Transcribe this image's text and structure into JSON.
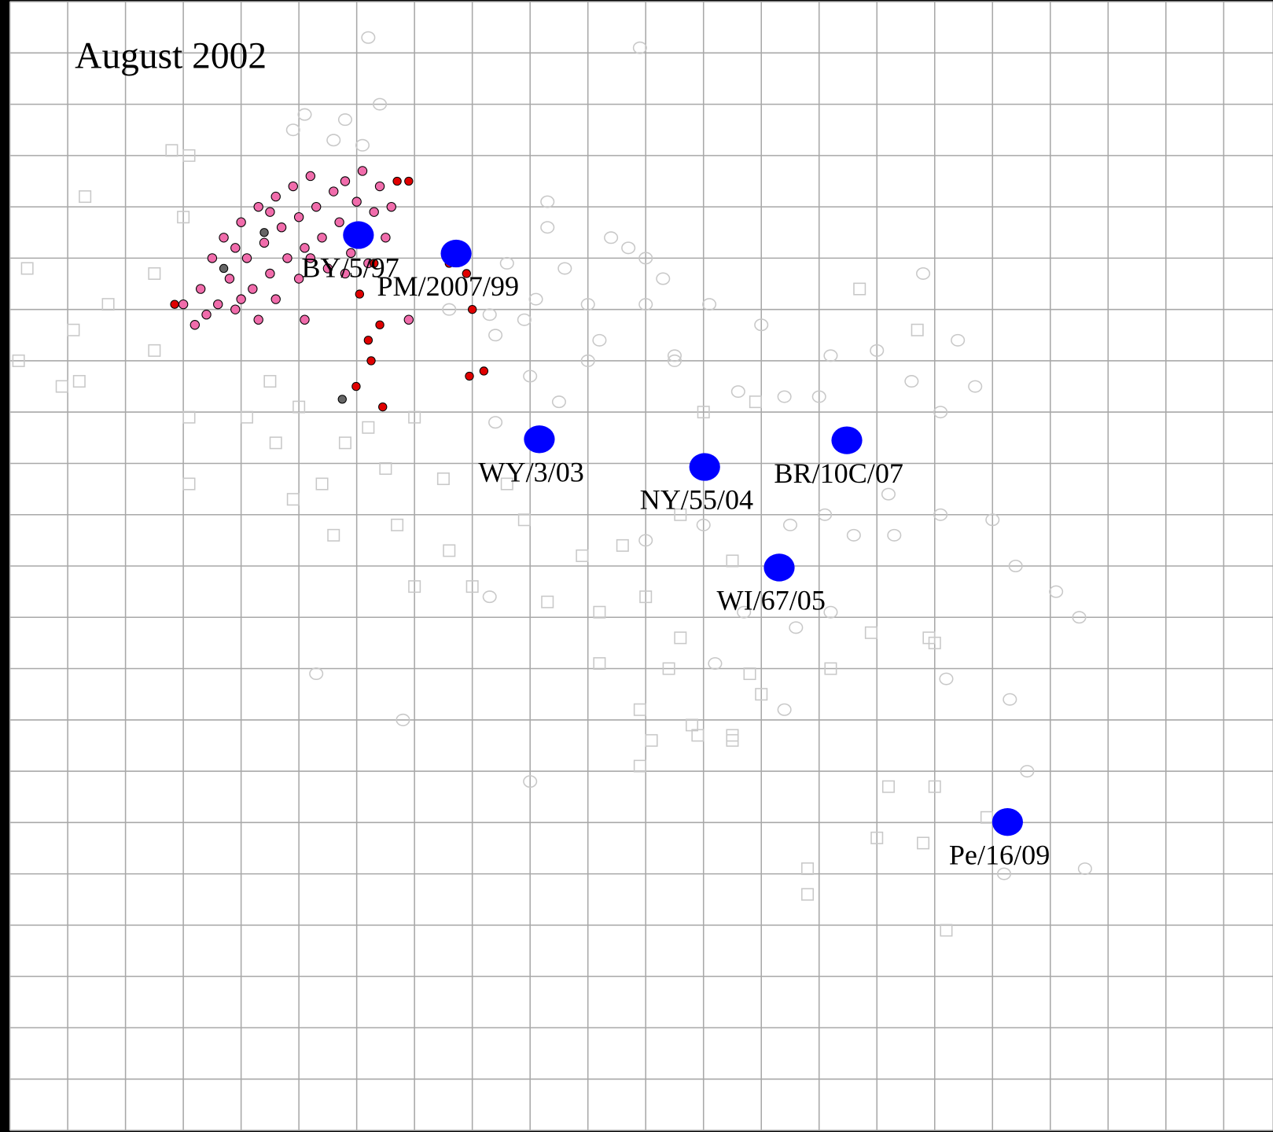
{
  "chart_data": {
    "type": "scatter",
    "title": "August 2002",
    "xlim": [
      0,
      21.85
    ],
    "ylim": [
      22,
      0
    ],
    "xticks": [
      0,
      1,
      2,
      3,
      4,
      5,
      6,
      7,
      8,
      9,
      10,
      11,
      12,
      13,
      14,
      15,
      16,
      17,
      18,
      19,
      20,
      21
    ],
    "yticks": [
      0,
      1,
      2,
      3,
      4,
      5,
      6,
      7,
      8,
      9,
      10,
      11,
      12,
      13,
      14,
      15,
      16,
      17,
      18,
      19,
      20,
      21,
      22
    ],
    "grid": true,
    "series": [
      {
        "marker": "square-open",
        "color": "#c8c8c8",
        "size": "medium",
        "x": [
          2.8,
          3.1,
          1.3,
          3.0,
          0.3,
          2.5,
          1.7,
          1.1,
          2.5,
          0.15,
          1.2,
          0.9,
          4.5,
          3.1,
          4.1,
          5.0,
          5.8,
          6.2,
          7.0,
          4.6,
          5.4,
          6.5,
          7.5,
          8.6,
          3.1,
          4.9,
          5.6,
          6.7,
          7.6,
          8.9,
          9.9,
          10.6,
          11.6,
          12.5,
          7.0,
          8.0,
          9.3,
          10.2,
          11.0,
          11.6,
          10.2,
          11.4,
          12.8,
          10.9,
          11.8,
          12.5,
          13.0,
          14.2,
          14.9,
          15.9,
          14.7,
          15.7,
          12.9,
          12.0,
          16.0,
          10.9,
          11.9,
          12.5,
          11.1,
          16.0,
          16.9,
          15.0,
          15.8,
          16.2,
          13.8,
          13.8,
          15.2
        ],
        "values": [
          2.9,
          3.0,
          3.8,
          4.2,
          5.2,
          5.3,
          5.9,
          6.4,
          6.8,
          7.0,
          7.4,
          7.5,
          7.4,
          8.1,
          8.1,
          7.9,
          8.6,
          8.3,
          8.1,
          8.6,
          9.4,
          9.1,
          9.3,
          9.4,
          9.4,
          9.7,
          10.4,
          10.2,
          10.7,
          10.1,
          10.8,
          10.6,
          10.0,
          10.9,
          11.4,
          11.4,
          11.7,
          11.9,
          11.6,
          12.4,
          12.9,
          13.0,
          13.1,
          13.8,
          14.1,
          14.3,
          13.5,
          13.0,
          12.3,
          12.4,
          5.6,
          6.4,
          7.8,
          8.0,
          12.5,
          14.9,
          14.3,
          14.4,
          14.4,
          15.3,
          15.9,
          16.3,
          16.4,
          18.1,
          17.4,
          16.9,
          15.3
        ]
      },
      {
        "marker": "circle-open",
        "color": "#c8c8c8",
        "size": "medium",
        "x": [
          6.2,
          10.9,
          6.4,
          5.1,
          5.8,
          4.9,
          5.6,
          6.1,
          9.3,
          9.3,
          10.4,
          10.7,
          11.0,
          8.6,
          9.6,
          11.3,
          7.6,
          8.3,
          9.1,
          10.0,
          11.0,
          12.1,
          8.9,
          10.2,
          11.5,
          13.0,
          14.2,
          15.0,
          15.8,
          16.4,
          16.7,
          15.6,
          14.0,
          13.4,
          12.6,
          11.5,
          10.0,
          9.0,
          8.4,
          9.5,
          8.4,
          16.1,
          15.2,
          14.1,
          13.5,
          14.6,
          15.3,
          16.1,
          17.0,
          17.4,
          18.1,
          17.3,
          17.6,
          16.2,
          13.4,
          12.2,
          9.0,
          6.8,
          5.3,
          8.3,
          18.5,
          17.2,
          18.6,
          12.0,
          11.0,
          12.7,
          13.6,
          14.2
        ],
        "values": [
          0.7,
          0.9,
          2.0,
          2.2,
          2.3,
          2.5,
          2.7,
          2.8,
          3.9,
          4.4,
          4.6,
          4.8,
          5.0,
          5.1,
          5.2,
          5.4,
          6.0,
          6.1,
          5.8,
          5.9,
          5.9,
          5.9,
          6.2,
          6.6,
          6.9,
          6.3,
          6.9,
          6.8,
          5.3,
          6.6,
          7.5,
          7.4,
          7.7,
          7.7,
          7.6,
          7.0,
          7.0,
          7.3,
          6.5,
          7.8,
          8.2,
          8.0,
          9.6,
          10.0,
          10.2,
          10.4,
          10.4,
          10.0,
          10.1,
          11.0,
          11.5,
          13.6,
          15.0,
          13.2,
          13.8,
          12.9,
          15.2,
          14.0,
          13.1,
          11.6,
          12.0,
          17.0,
          16.9,
          10.2,
          10.5,
          11.9,
          12.2,
          11.9
        ]
      },
      {
        "marker": "circle-filled",
        "color": "#f06cab",
        "size": "small",
        "x": [
          3.0,
          3.2,
          3.3,
          3.5,
          3.6,
          3.7,
          3.8,
          3.9,
          4.0,
          4.1,
          4.2,
          4.3,
          4.4,
          4.5,
          4.6,
          4.7,
          4.8,
          4.9,
          5.0,
          5.1,
          5.2,
          5.3,
          5.4,
          5.5,
          5.6,
          5.7,
          5.8,
          5.9,
          6.0,
          6.1,
          6.3,
          6.4,
          6.6,
          4.0,
          3.4,
          4.6,
          5.0,
          5.8,
          6.2,
          3.9,
          4.5,
          5.2,
          6.5,
          6.9,
          5.1,
          4.3
        ],
        "values": [
          5.9,
          6.3,
          5.6,
          5.0,
          5.9,
          4.6,
          5.4,
          6.0,
          4.3,
          5.0,
          5.6,
          4.0,
          4.7,
          5.3,
          3.8,
          4.4,
          5.0,
          3.6,
          4.2,
          4.8,
          3.4,
          4.0,
          4.6,
          5.2,
          3.7,
          4.3,
          3.5,
          4.9,
          3.9,
          3.3,
          4.1,
          3.6,
          4.0,
          5.8,
          6.1,
          5.8,
          5.4,
          5.3,
          5.1,
          4.8,
          4.1,
          5.0,
          4.6,
          6.2,
          6.2,
          6.2
        ]
      },
      {
        "marker": "circle-filled",
        "color": "#e00000",
        "size": "tiny",
        "x": [
          2.85,
          6.3,
          6.4,
          6.25,
          6.2,
          6.45,
          6.7,
          6.9,
          7.9,
          8.0,
          7.6,
          5.99,
          7.95,
          8.2,
          6.05
        ],
        "values": [
          5.9,
          5.1,
          6.3,
          7.0,
          6.6,
          7.9,
          3.5,
          3.5,
          5.3,
          6.0,
          5.1,
          7.5,
          7.3,
          7.2,
          5.7
        ]
      },
      {
        "marker": "circle-filled",
        "color": "#666666",
        "size": "tiny",
        "x": [
          5.75,
          4.4,
          3.7
        ],
        "values": [
          7.75,
          4.5,
          5.2
        ]
      },
      {
        "marker": "circle-filled",
        "color": "#0000ff",
        "size": "large",
        "stroke": "none",
        "x": [
          6.03,
          7.72,
          9.16,
          12.02,
          14.48,
          13.31,
          17.26
        ],
        "values": [
          4.55,
          4.91,
          8.53,
          9.07,
          8.55,
          11.03,
          15.99
        ],
        "labels": [
          "BY/5/97",
          "PM/2007/99",
          "WY/3/03",
          "NY/55/04",
          "BR/10C/07",
          "WI/67/05",
          "Pe/16/09"
        ]
      }
    ]
  }
}
